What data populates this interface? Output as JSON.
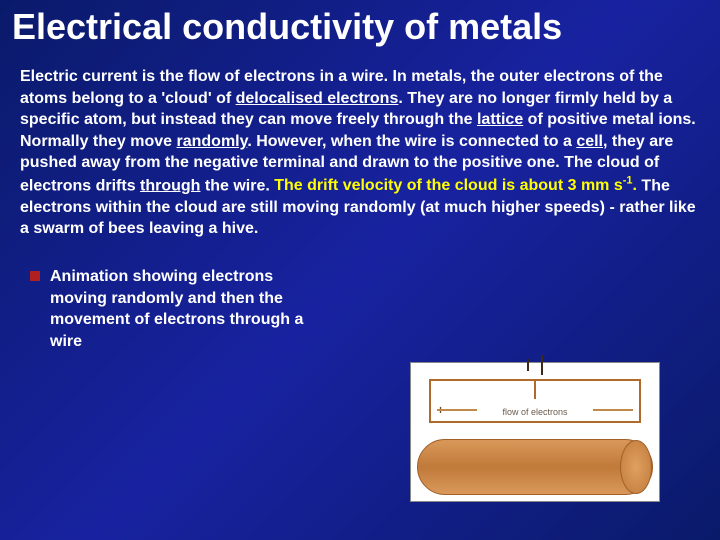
{
  "title": "Electrical conductivity of metals",
  "paragraph": {
    "p1": "Electric current is the flow of electrons in a wire. In metals, the outer electrons of the atoms belong to a 'cloud' of ",
    "u1": "delocalised electrons",
    "p2": ". They are no longer firmly held by a specific atom, but instead they can move freely through the ",
    "u2": "lattice",
    "p3": " of positive metal ions. Normally they move ",
    "u3": "randomly",
    "p4": ". However, when the wire is connected to a ",
    "u4": "cell",
    "p5": ", they are pushed away from the negative terminal and drawn to the positive one. The cloud of electrons drifts ",
    "u5": "through",
    "p6": " the wire. ",
    "y1": "The drift velocity of the cloud is about 3 mm s",
    "y1sup": "-1",
    "y1end": ".",
    "p7": " The electrons within the cloud are still moving randomly (at much higher speeds) - rather like a swarm of bees leaving a hive."
  },
  "caption": " Animation showing electrons moving randomly and then the movement of electrons through a wire",
  "diagram": {
    "flow_label": "flow of electrons",
    "plus": "+",
    "minus": "−"
  },
  "colors": {
    "title": "#ffffff",
    "text": "#ffffff",
    "highlight": "#ffff00",
    "bullet": "#b02020",
    "bg_top": "#0a1a6a",
    "bg_mid": "#1822a0"
  }
}
